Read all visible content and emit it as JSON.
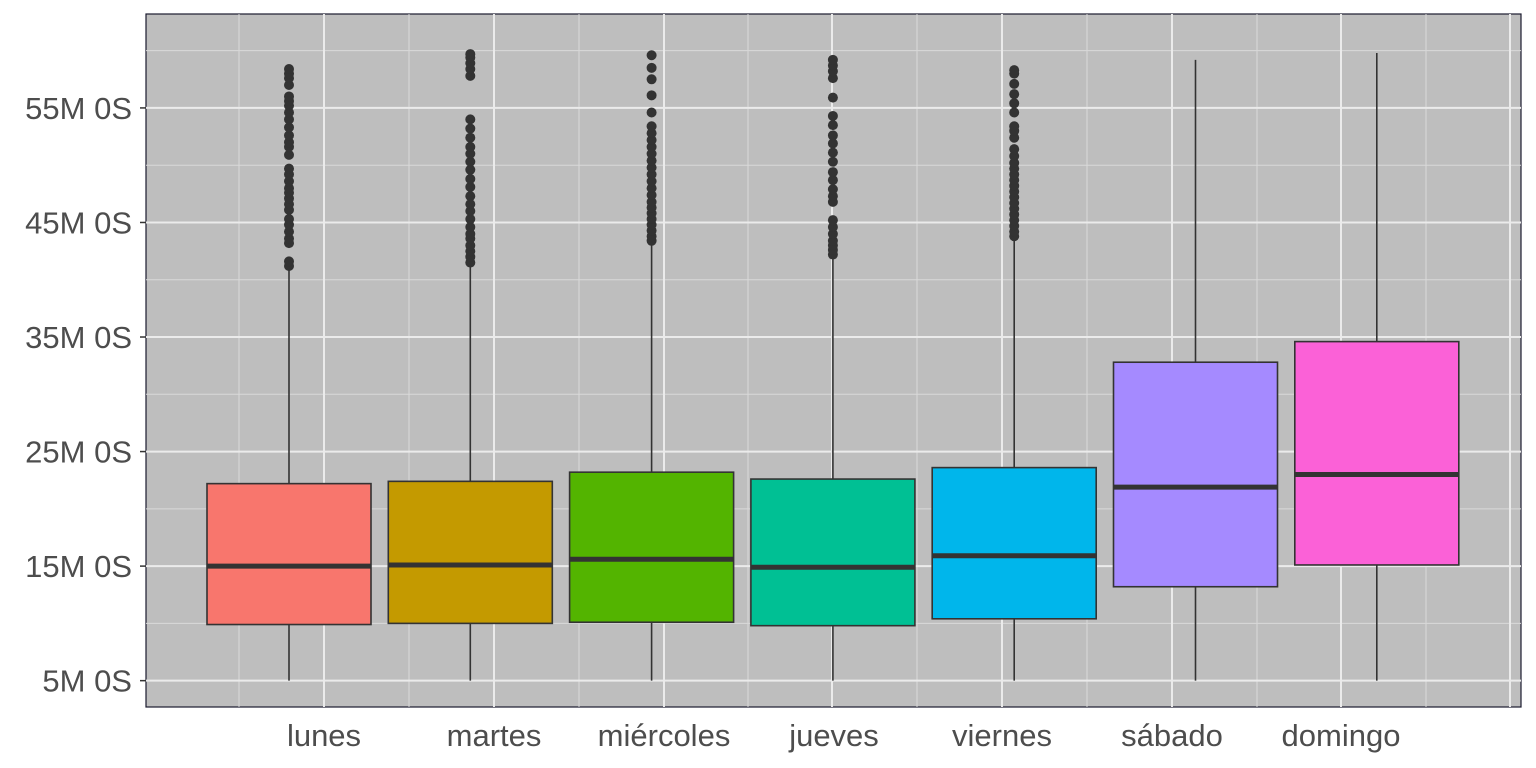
{
  "chart_data": {
    "type": "boxplot",
    "title": "",
    "xlabel": "",
    "ylabel": "",
    "panel_background": "#bebebe",
    "grid": true,
    "legend": "none",
    "y_tick_values": [
      5,
      15,
      25,
      35,
      45,
      55
    ],
    "y_tick_labels": [
      "5M 0S",
      "15M 0S",
      "25M 0S",
      "35M 0S",
      "45M 0S",
      "55M 0S"
    ],
    "x_tick_labels": [
      "lunes",
      "martes",
      "miércoles",
      "jueves",
      "viernes",
      "sábado",
      "domingo"
    ],
    "ylim": [
      2.7,
      63.2
    ],
    "boxes": [
      {
        "category": "lunes",
        "color": "#f8766d",
        "whisker_low": 5.0,
        "q1": 9.9,
        "median": 15.0,
        "q3": 22.2,
        "whisker_high": 41.0,
        "outliers": [
          41.2,
          41.6,
          43.2,
          43.6,
          44.2,
          44.8,
          45.3,
          46.1,
          46.6,
          47.1,
          47.6,
          48.0,
          48.6,
          49.2,
          49.7,
          50.9,
          51.6,
          52.0,
          52.6,
          53.3,
          54.0,
          54.6,
          55.2,
          55.6,
          56.0,
          57.0,
          57.6,
          58.0,
          58.4
        ]
      },
      {
        "category": "martes",
        "color": "#c49a00",
        "whisker_low": 5.0,
        "q1": 10.0,
        "median": 15.1,
        "q3": 22.4,
        "whisker_high": 41.2,
        "outliers": [
          41.5,
          42.0,
          42.5,
          43.0,
          43.6,
          44.0,
          44.6,
          45.3,
          46.0,
          46.6,
          47.3,
          48.1,
          48.8,
          49.6,
          50.3,
          51.0,
          51.6,
          52.4,
          53.2,
          54.0,
          57.8,
          58.4,
          58.9,
          59.4,
          59.7
        ]
      },
      {
        "category": "miércoles",
        "color": "#53b400",
        "whisker_low": 5.0,
        "q1": 10.1,
        "median": 15.6,
        "q3": 23.2,
        "whisker_high": 43.0,
        "outliers": [
          43.4,
          43.8,
          44.3,
          44.8,
          45.3,
          45.8,
          46.3,
          46.8,
          47.4,
          48.0,
          48.6,
          49.2,
          49.8,
          50.4,
          51.0,
          51.6,
          52.2,
          52.8,
          53.4,
          54.6,
          56.1,
          57.5,
          58.5,
          59.6
        ]
      },
      {
        "category": "jueves",
        "color": "#00c094",
        "whisker_low": 5.0,
        "q1": 9.8,
        "median": 14.9,
        "q3": 22.6,
        "whisker_high": 42.0,
        "outliers": [
          42.2,
          42.6,
          43.0,
          43.4,
          44.0,
          44.6,
          45.2,
          46.8,
          47.3,
          47.9,
          48.7,
          49.4,
          50.3,
          51.1,
          51.9,
          52.6,
          53.5,
          54.3,
          55.9,
          57.6,
          58.2,
          58.7,
          59.2
        ]
      },
      {
        "category": "viernes",
        "color": "#00b6eb",
        "whisker_low": 5.0,
        "q1": 10.4,
        "median": 15.9,
        "q3": 23.6,
        "whisker_high": 43.5,
        "outliers": [
          43.8,
          44.2,
          44.7,
          45.2,
          45.7,
          46.2,
          46.7,
          47.2,
          47.7,
          48.2,
          48.7,
          49.2,
          49.7,
          50.2,
          50.8,
          51.4,
          52.4,
          53.0,
          53.4,
          54.6,
          55.4,
          56.2,
          57.1,
          58.0,
          58.3
        ]
      },
      {
        "category": "sábado",
        "color": "#a58aff",
        "whisker_low": 5.0,
        "q1": 13.2,
        "median": 21.9,
        "q3": 32.8,
        "whisker_high": 59.2,
        "outliers": []
      },
      {
        "category": "domingo",
        "color": "#fb61d7",
        "whisker_low": 5.0,
        "q1": 15.1,
        "median": 23.0,
        "q3": 34.6,
        "whisker_high": 59.8,
        "outliers": []
      }
    ]
  }
}
